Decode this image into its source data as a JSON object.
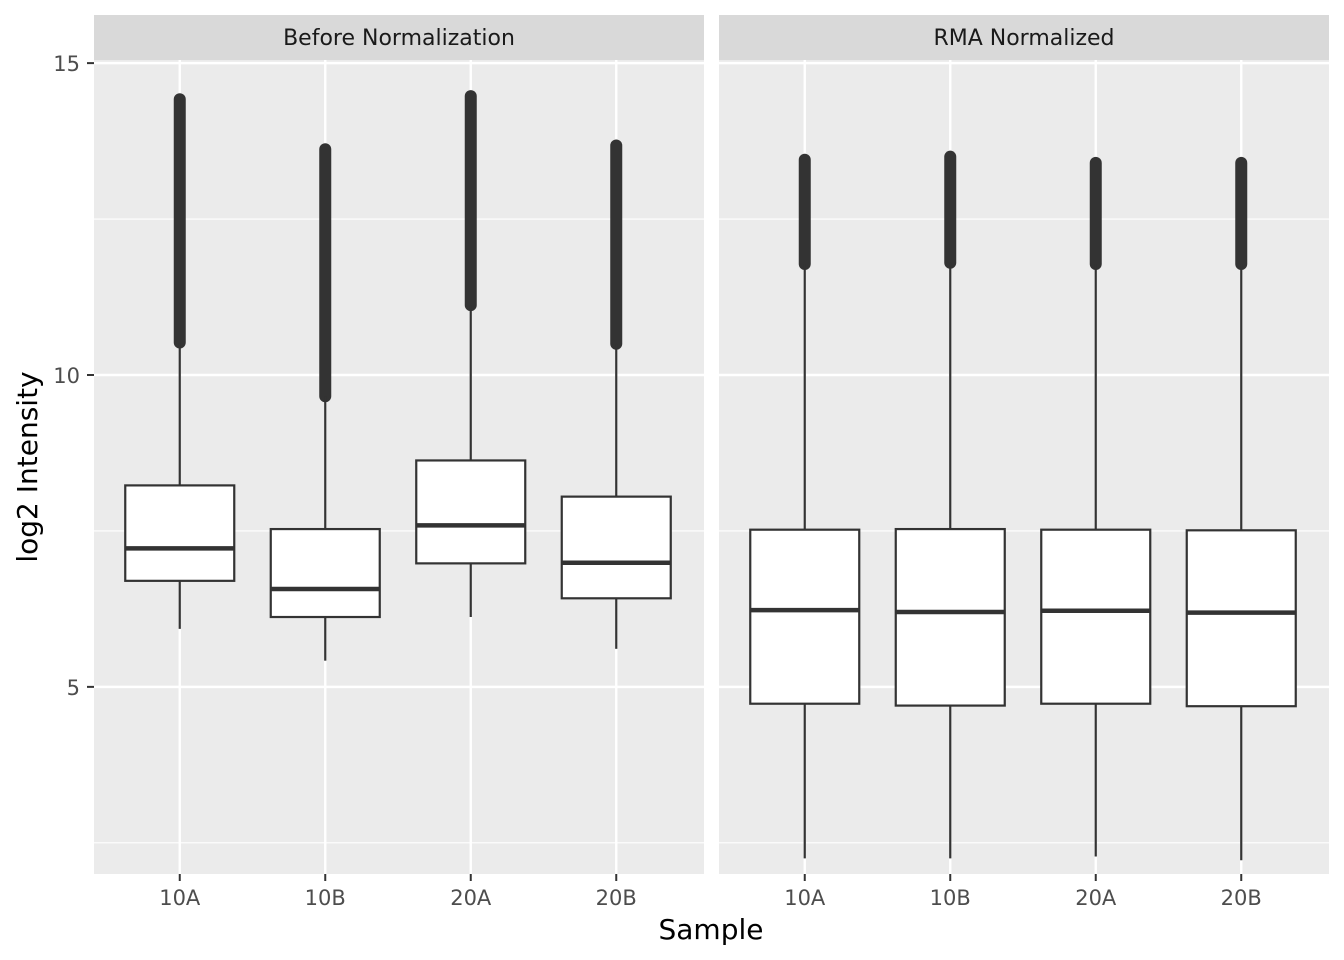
{
  "chart_data": {
    "type": "box",
    "xlabel": "Sample",
    "ylabel": "log2 Intensity",
    "ylim": [
      2.0,
      15.05
    ],
    "y_ticks": [
      5,
      10,
      15
    ],
    "y_tick_labels": [
      "5",
      "10",
      "15"
    ],
    "grid": true,
    "categories": [
      "10A",
      "10B",
      "20A",
      "20B"
    ],
    "panels": [
      {
        "title": "Before Normalization",
        "boxes": [
          {
            "label": "10A",
            "whisker_low": 5.93,
            "q1": 6.7,
            "median": 7.22,
            "q3": 8.23,
            "whisker_high": 10.52,
            "outlier_high": 14.42
          },
          {
            "label": "10B",
            "whisker_low": 5.42,
            "q1": 6.12,
            "median": 6.57,
            "q3": 7.53,
            "whisker_high": 9.66,
            "outlier_high": 13.62
          },
          {
            "label": "20A",
            "whisker_low": 6.12,
            "q1": 6.98,
            "median": 7.59,
            "q3": 8.63,
            "whisker_high": 11.12,
            "outlier_high": 14.47
          },
          {
            "label": "20B",
            "whisker_low": 5.61,
            "q1": 6.42,
            "median": 6.99,
            "q3": 8.05,
            "whisker_high": 10.5,
            "outlier_high": 13.68
          }
        ]
      },
      {
        "title": "RMA Normalized",
        "boxes": [
          {
            "label": "10A",
            "whisker_low": 2.25,
            "q1": 4.73,
            "median": 6.23,
            "q3": 7.52,
            "whisker_high": 11.78,
            "outlier_high": 13.45
          },
          {
            "label": "10B",
            "whisker_low": 2.25,
            "q1": 4.7,
            "median": 6.2,
            "q3": 7.53,
            "whisker_high": 11.8,
            "outlier_high": 13.5
          },
          {
            "label": "20A",
            "whisker_low": 2.28,
            "q1": 4.73,
            "median": 6.22,
            "q3": 7.52,
            "whisker_high": 11.78,
            "outlier_high": 13.4
          },
          {
            "label": "20B",
            "whisker_low": 2.22,
            "q1": 4.69,
            "median": 6.19,
            "q3": 7.51,
            "whisker_high": 11.78,
            "outlier_high": 13.4
          }
        ]
      }
    ]
  },
  "colors": {
    "panel_background": "#ebebeb",
    "strip_background": "#d9d9d9",
    "grid": "#ffffff",
    "box_line": "#333333",
    "box_fill": "#ffffff"
  }
}
